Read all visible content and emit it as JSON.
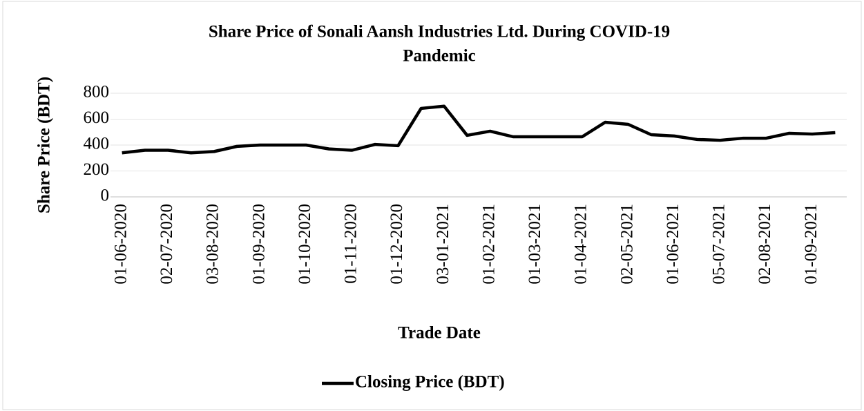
{
  "chart_data": {
    "type": "line",
    "title": "Share Price of Sonali Aansh Industries Ltd. During COVID-19 Pandemic",
    "title_lines": [
      "Share Price of Sonali Aansh Industries Ltd. During COVID-19",
      "Pandemic"
    ],
    "x_label": "Trade Date",
    "y_label": "Share Price (BDT)",
    "categories": [
      "01-06-2020",
      null,
      "02-07-2020",
      null,
      "03-08-2020",
      null,
      "01-09-2020",
      null,
      "01-10-2020",
      null,
      "01-11-2020",
      null,
      "01-12-2020",
      null,
      "03-01-2021",
      null,
      "01-02-2021",
      null,
      "01-03-2021",
      null,
      "01-04-2021",
      null,
      "02-05-2021",
      null,
      "01-06-2021",
      null,
      "05-07-2021",
      null,
      "02-08-2021",
      null,
      "01-09-2021",
      null
    ],
    "series": [
      {
        "name": "Closing Price (BDT)",
        "color": "#000000",
        "values": [
          340,
          360,
          360,
          340,
          350,
          390,
          400,
          400,
          400,
          370,
          360,
          405,
          395,
          683,
          700,
          475,
          507,
          464,
          464,
          464,
          464,
          576,
          560,
          480,
          470,
          443,
          437,
          453,
          453,
          491,
          485,
          496
        ]
      }
    ],
    "ylim": [
      0,
      800
    ],
    "yticks": [
      0,
      200,
      400,
      600,
      800
    ],
    "grid": true,
    "legend": "bottom"
  }
}
